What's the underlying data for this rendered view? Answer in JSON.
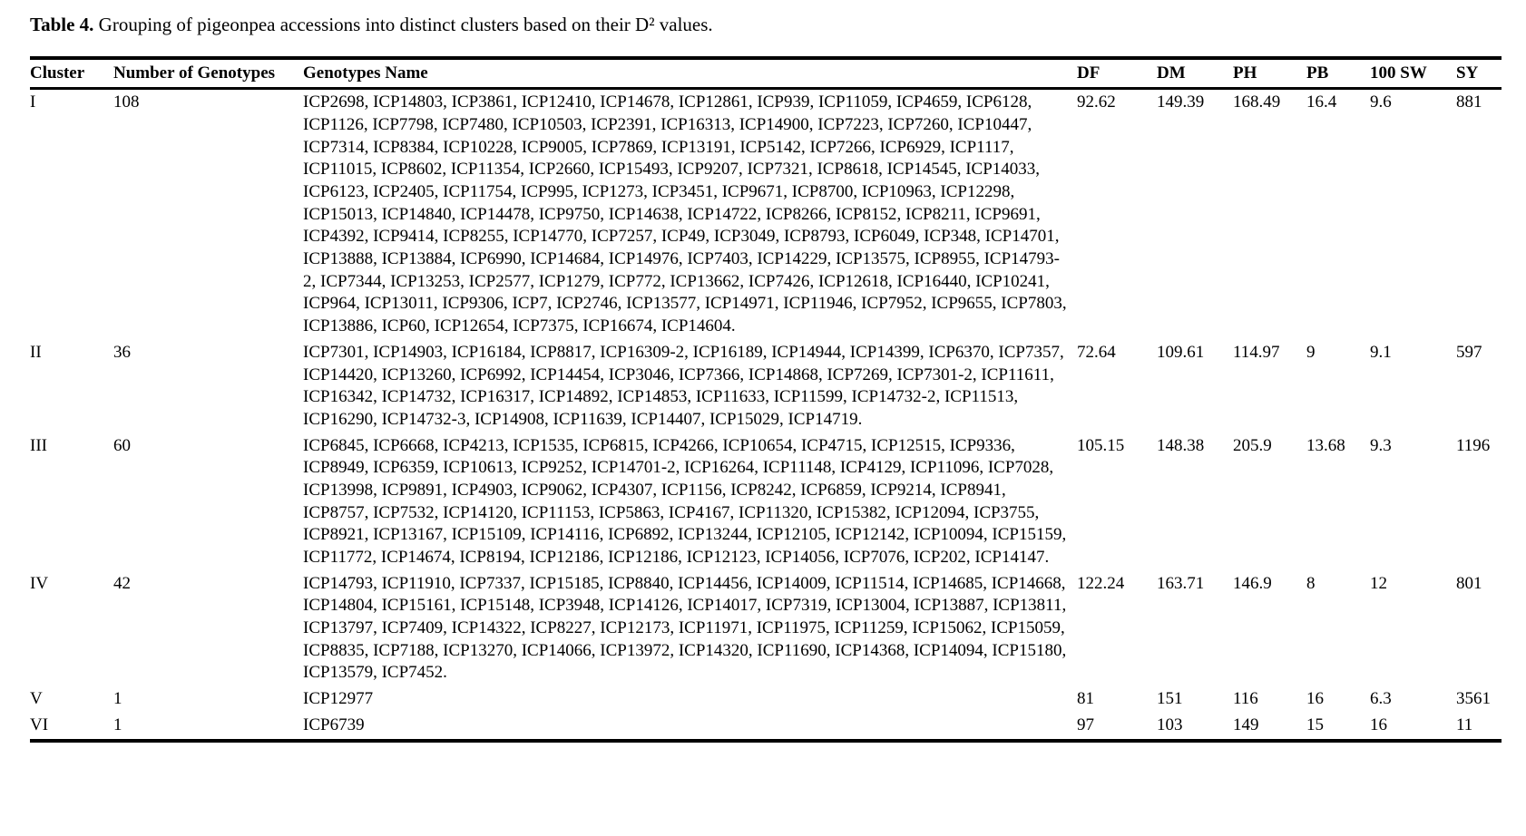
{
  "caption": {
    "label": "Table 4.",
    "text": " Grouping of pigeonpea accessions into distinct clusters based on their D² values."
  },
  "table": {
    "columns": [
      "Cluster",
      "Number of Genotypes",
      "Genotypes Name",
      "DF",
      "DM",
      "PH",
      "PB",
      "100 SW",
      "SY"
    ],
    "rows": [
      {
        "cluster": "I",
        "count": "108",
        "genotypes": "ICP2698, ICP14803, ICP3861, ICP12410, ICP14678, ICP12861, ICP939, ICP11059, ICP4659, ICP6128, ICP1126, ICP7798, ICP7480, ICP10503, ICP2391, ICP16313, ICP14900, ICP7223, ICP7260, ICP10447, ICP7314, ICP8384, ICP10228, ICP9005, ICP7869, ICP13191, ICP5142, ICP7266, ICP6929, ICP1117, ICP11015, ICP8602, ICP11354, ICP2660, ICP15493, ICP9207, ICP7321, ICP8618, ICP14545, ICP14033, ICP6123, ICP2405, ICP11754, ICP995, ICP1273, ICP3451, ICP9671, ICP8700, ICP10963, ICP12298, ICP15013, ICP14840, ICP14478, ICP9750, ICP14638, ICP14722, ICP8266, ICP8152, ICP8211, ICP9691, ICP4392, ICP9414, ICP8255, ICP14770, ICP7257, ICP49, ICP3049, ICP8793, ICP6049, ICP348, ICP14701, ICP13888, ICP13884, ICP6990, ICP14684, ICP14976, ICP7403, ICP14229, ICP13575, ICP8955, ICP14793-2, ICP7344, ICP13253, ICP2577, ICP1279, ICP772, ICP13662, ICP7426, ICP12618, ICP16440, ICP10241, ICP964, ICP13011, ICP9306, ICP7, ICP2746, ICP13577, ICP14971, ICP11946, ICP7952, ICP9655, ICP7803, ICP13886, ICP60, ICP12654, ICP7375, ICP16674, ICP14604.",
        "df": "92.62",
        "dm": "149.39",
        "ph": "168.49",
        "pb": "16.4",
        "sw": "9.6",
        "sy": "881"
      },
      {
        "cluster": "II",
        "count": "36",
        "genotypes": "ICP7301, ICP14903, ICP16184, ICP8817, ICP16309-2, ICP16189, ICP14944, ICP14399, ICP6370, ICP7357, ICP14420, ICP13260, ICP6992, ICP14454, ICP3046, ICP7366, ICP14868, ICP7269, ICP7301-2, ICP11611, ICP16342, ICP14732, ICP16317, ICP14892, ICP14853, ICP11633, ICP11599, ICP14732-2, ICP11513, ICP16290, ICP14732-3, ICP14908, ICP11639, ICP14407, ICP15029, ICP14719.",
        "df": "72.64",
        "dm": "109.61",
        "ph": "114.97",
        "pb": "9",
        "sw": "9.1",
        "sy": "597"
      },
      {
        "cluster": "III",
        "count": "60",
        "genotypes": "ICP6845, ICP6668, ICP4213, ICP1535, ICP6815, ICP4266, ICP10654, ICP4715, ICP12515, ICP9336, ICP8949, ICP6359, ICP10613, ICP9252, ICP14701-2, ICP16264, ICP11148, ICP4129, ICP11096, ICP7028, ICP13998, ICP9891, ICP4903, ICP9062, ICP4307, ICP1156, ICP8242, ICP6859, ICP9214, ICP8941, ICP8757, ICP7532, ICP14120, ICP11153, ICP5863, ICP4167, ICP11320, ICP15382, ICP12094, ICP3755, ICP8921, ICP13167, ICP15109, ICP14116, ICP6892, ICP13244, ICP12105, ICP12142, ICP10094, ICP15159, ICP11772, ICP14674, ICP8194, ICP12186, ICP12186, ICP12123, ICP14056, ICP7076, ICP202, ICP14147.",
        "df": "105.15",
        "dm": "148.38",
        "ph": "205.9",
        "pb": "13.68",
        "sw": "9.3",
        "sy": "1196"
      },
      {
        "cluster": "IV",
        "count": "42",
        "genotypes": "ICP14793, ICP11910, ICP7337, ICP15185, ICP8840, ICP14456, ICP14009, ICP11514, ICP14685, ICP14668, ICP14804, ICP15161, ICP15148, ICP3948, ICP14126, ICP14017, ICP7319, ICP13004, ICP13887, ICP13811, ICP13797, ICP7409, ICP14322, ICP8227, ICP12173, ICP11971, ICP11975, ICP11259, ICP15062, ICP15059, ICP8835, ICP7188, ICP13270, ICP14066, ICP13972, ICP14320, ICP11690, ICP14368, ICP14094, ICP15180, ICP13579, ICP7452.",
        "df": "122.24",
        "dm": "163.71",
        "ph": "146.9",
        "pb": "8",
        "sw": "12",
        "sy": "801"
      },
      {
        "cluster": "V",
        "count": "1",
        "genotypes": "ICP12977",
        "df": "81",
        "dm": "151",
        "ph": "116",
        "pb": "16",
        "sw": "6.3",
        "sy": "3561"
      },
      {
        "cluster": "VI",
        "count": "1",
        "genotypes": "ICP6739",
        "df": "97",
        "dm": "103",
        "ph": "149",
        "pb": "15",
        "sw": "16",
        "sy": "11"
      }
    ]
  }
}
